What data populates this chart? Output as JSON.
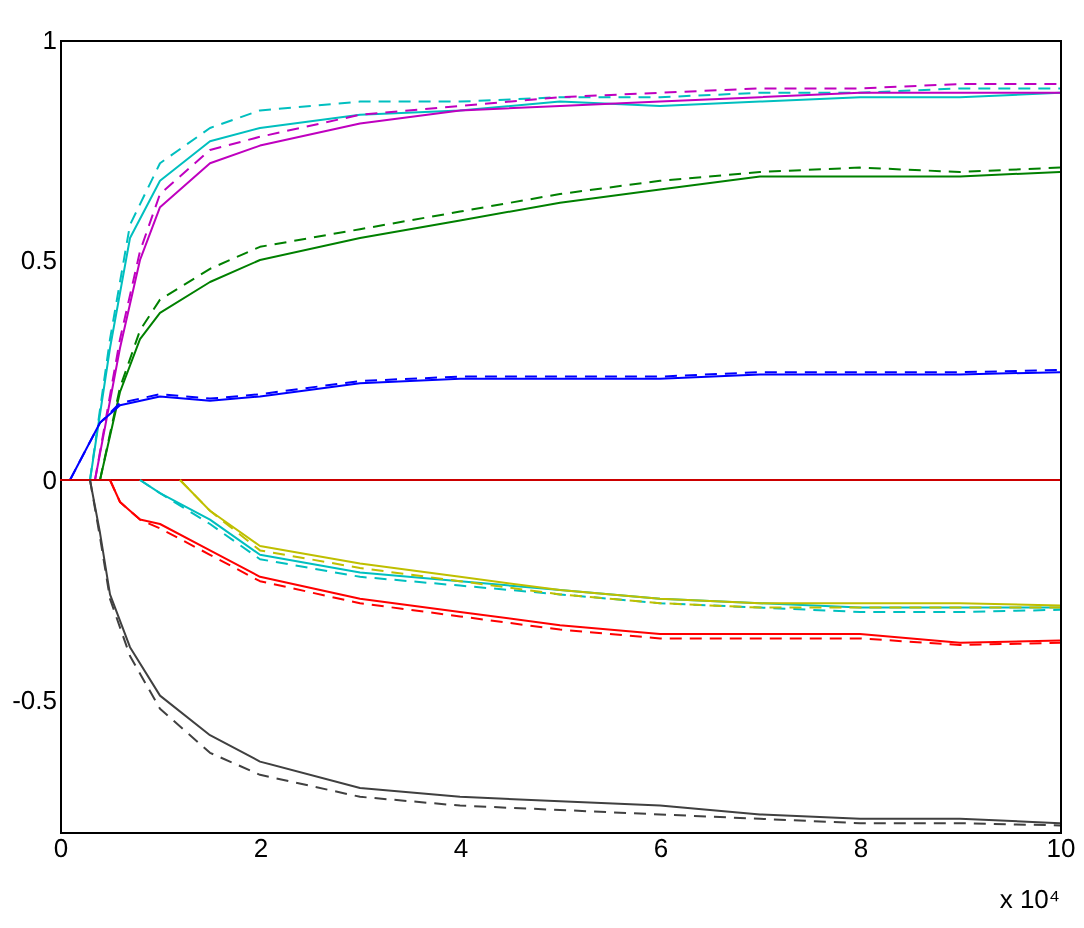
{
  "chart_data": {
    "type": "line",
    "xlim": [
      0,
      10
    ],
    "ylim": [
      -0.8,
      1
    ],
    "xticks": [
      0,
      2,
      4,
      6,
      8,
      10
    ],
    "yticks": [
      -0.5,
      0,
      0.5,
      1
    ],
    "grid": false,
    "marker": "none",
    "annotations": [
      "x 10⁴"
    ],
    "series": [
      {
        "color": "#00bfbf",
        "line_style": "solid",
        "x": [
          0.3,
          0.5,
          0.7,
          1,
          1.5,
          2,
          3,
          4,
          5,
          6,
          7,
          8,
          9,
          10
        ],
        "values": [
          0,
          0.3,
          0.55,
          0.68,
          0.77,
          0.8,
          0.83,
          0.84,
          0.86,
          0.85,
          0.86,
          0.87,
          0.87,
          0.88
        ]
      },
      {
        "color": "#00bfbf",
        "line_style": "dashed",
        "x": [
          0.3,
          0.5,
          0.7,
          1,
          1.5,
          2,
          3,
          4,
          5,
          6,
          7,
          8,
          9,
          10
        ],
        "values": [
          0,
          0.32,
          0.58,
          0.72,
          0.8,
          0.84,
          0.86,
          0.86,
          0.87,
          0.87,
          0.88,
          0.88,
          0.89,
          0.89
        ]
      },
      {
        "color": "#bf00bf",
        "line_style": "solid",
        "x": [
          0.35,
          0.6,
          0.8,
          1,
          1.5,
          2,
          3,
          4,
          5,
          6,
          7,
          8,
          9,
          10
        ],
        "values": [
          0,
          0.3,
          0.5,
          0.62,
          0.72,
          0.76,
          0.81,
          0.84,
          0.85,
          0.86,
          0.87,
          0.88,
          0.88,
          0.88
        ]
      },
      {
        "color": "#bf00bf",
        "line_style": "dashed",
        "x": [
          0.35,
          0.6,
          0.8,
          1,
          1.5,
          2,
          3,
          4,
          5,
          6,
          7,
          8,
          9,
          10
        ],
        "values": [
          0,
          0.32,
          0.52,
          0.65,
          0.75,
          0.78,
          0.83,
          0.85,
          0.87,
          0.88,
          0.89,
          0.89,
          0.9,
          0.9
        ]
      },
      {
        "color": "#008000",
        "line_style": "solid",
        "x": [
          0.4,
          0.6,
          0.8,
          1,
          1.5,
          2,
          3,
          4,
          5,
          6,
          7,
          8,
          9,
          10
        ],
        "values": [
          0,
          0.2,
          0.32,
          0.38,
          0.45,
          0.5,
          0.55,
          0.59,
          0.63,
          0.66,
          0.69,
          0.69,
          0.69,
          0.7
        ]
      },
      {
        "color": "#008000",
        "line_style": "dashed",
        "x": [
          0.4,
          0.6,
          0.8,
          1,
          1.5,
          2,
          3,
          4,
          5,
          6,
          7,
          8,
          9,
          10
        ],
        "values": [
          0,
          0.21,
          0.34,
          0.41,
          0.48,
          0.53,
          0.57,
          0.61,
          0.65,
          0.68,
          0.7,
          0.71,
          0.7,
          0.71
        ]
      },
      {
        "color": "#0000ff",
        "line_style": "solid",
        "x": [
          0.1,
          0.4,
          0.6,
          1,
          1.5,
          2,
          3,
          4,
          5,
          6,
          7,
          8,
          9,
          10
        ],
        "values": [
          0,
          0.13,
          0.17,
          0.19,
          0.18,
          0.19,
          0.22,
          0.23,
          0.23,
          0.23,
          0.24,
          0.24,
          0.24,
          0.245
        ]
      },
      {
        "color": "#0000ff",
        "line_style": "dashed",
        "x": [
          0.1,
          0.4,
          0.6,
          1,
          1.5,
          2,
          3,
          4,
          5,
          6,
          7,
          8,
          9,
          10
        ],
        "values": [
          0,
          0.13,
          0.175,
          0.195,
          0.185,
          0.195,
          0.225,
          0.235,
          0.235,
          0.235,
          0.245,
          0.245,
          0.245,
          0.25
        ]
      },
      {
        "color": "#cc0000",
        "line_style": "solid",
        "x": [
          0,
          10
        ],
        "values": [
          0,
          0
        ]
      },
      {
        "color": "#ff0000",
        "line_style": "solid",
        "x": [
          0.5,
          0.6,
          0.8,
          1,
          1.5,
          2,
          3,
          4,
          5,
          6,
          7,
          8,
          9,
          10
        ],
        "values": [
          0,
          -0.05,
          -0.09,
          -0.1,
          -0.16,
          -0.22,
          -0.27,
          -0.3,
          -0.33,
          -0.35,
          -0.35,
          -0.35,
          -0.37,
          -0.365
        ]
      },
      {
        "color": "#ff0000",
        "line_style": "dashed",
        "x": [
          0.5,
          0.6,
          0.8,
          1,
          1.5,
          2,
          3,
          4,
          5,
          6,
          7,
          8,
          9,
          10
        ],
        "values": [
          0,
          -0.05,
          -0.09,
          -0.11,
          -0.17,
          -0.23,
          -0.28,
          -0.31,
          -0.34,
          -0.36,
          -0.36,
          -0.36,
          -0.375,
          -0.37
        ]
      },
      {
        "color": "#00bfbf",
        "line_style": "solid",
        "x": [
          0.8,
          1,
          1.5,
          2,
          3,
          4,
          5,
          6,
          7,
          8,
          9,
          10
        ],
        "values": [
          0,
          -0.03,
          -0.09,
          -0.17,
          -0.21,
          -0.23,
          -0.25,
          -0.27,
          -0.28,
          -0.29,
          -0.29,
          -0.29
        ]
      },
      {
        "color": "#00bfbf",
        "line_style": "dashed",
        "x": [
          0.8,
          1,
          1.5,
          2,
          3,
          4,
          5,
          6,
          7,
          8,
          9,
          10
        ],
        "values": [
          0,
          -0.03,
          -0.1,
          -0.18,
          -0.22,
          -0.24,
          -0.26,
          -0.28,
          -0.29,
          -0.3,
          -0.3,
          -0.295
        ]
      },
      {
        "color": "#bfbf00",
        "line_style": "solid",
        "x": [
          1.2,
          1.5,
          2,
          3,
          4,
          5,
          6,
          7,
          8,
          9,
          10
        ],
        "values": [
          0,
          -0.07,
          -0.15,
          -0.19,
          -0.22,
          -0.25,
          -0.27,
          -0.28,
          -0.28,
          -0.28,
          -0.285
        ]
      },
      {
        "color": "#bfbf00",
        "line_style": "dashed",
        "x": [
          1.2,
          1.5,
          2,
          3,
          4,
          5,
          6,
          7,
          8,
          9,
          10
        ],
        "values": [
          0,
          -0.07,
          -0.16,
          -0.2,
          -0.23,
          -0.26,
          -0.28,
          -0.29,
          -0.29,
          -0.29,
          -0.29
        ]
      },
      {
        "color": "#404040",
        "line_style": "solid",
        "x": [
          0.3,
          0.4,
          0.5,
          0.7,
          1,
          1.5,
          2,
          3,
          4,
          5,
          6,
          7,
          8,
          9,
          10
        ],
        "values": [
          0,
          -0.12,
          -0.26,
          -0.38,
          -0.49,
          -0.58,
          -0.64,
          -0.7,
          -0.72,
          -0.73,
          -0.74,
          -0.76,
          -0.77,
          -0.77,
          -0.78
        ]
      },
      {
        "color": "#404040",
        "line_style": "dashed",
        "x": [
          0.3,
          0.4,
          0.5,
          0.7,
          1,
          1.5,
          2,
          3,
          4,
          5,
          6,
          7,
          8,
          9,
          10
        ],
        "values": [
          0,
          -0.13,
          -0.27,
          -0.4,
          -0.52,
          -0.62,
          -0.67,
          -0.72,
          -0.74,
          -0.75,
          -0.76,
          -0.77,
          -0.78,
          -0.78,
          -0.785
        ]
      }
    ]
  }
}
